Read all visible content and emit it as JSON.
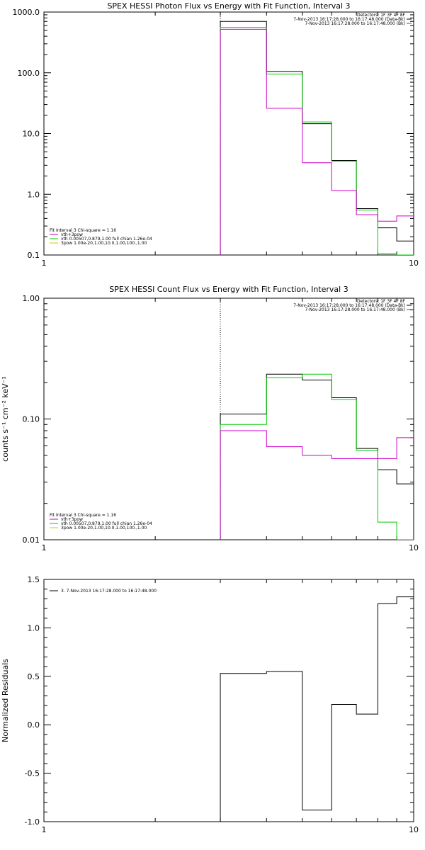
{
  "colors": {
    "black": "#000000",
    "magenta": "#cc00cc",
    "green": "#00cc00",
    "yellow": "#cccc00"
  },
  "chart_data": [
    {
      "type": "line",
      "title": "SPEX HESSI Photon Flux vs Energy with Fit Function, Interval 3",
      "xlabel": "",
      "ylabel": "",
      "xscale": "log",
      "yscale": "log",
      "xlim": [
        1,
        10
      ],
      "ylim": [
        0.1,
        1000
      ],
      "xticks": [
        "1",
        "10"
      ],
      "yticks": [
        "0.1",
        "1.0",
        "10.0",
        "100.0",
        "1000.0"
      ],
      "grid": false,
      "marker_x": 3,
      "info_right": [
        "Detectors: 1F 3F 4F 8F",
        "7-Nov-2013 16:17:28.000 to 16:17:48.000 (Data-Bk)",
        "7-Nov-2013 16:17:28.000 to 16:17:48.000 (Bk)"
      ],
      "legend_placement": "bottom-left",
      "legend_lines": [
        "Fit Interval 3   Chi-square = 1.16",
        "vth+3pow",
        "vth 0.00507,0.879,1.00  full chian 1.26e-04",
        "3pow 1.00e-20,1.00,10.0,1.00,100.,1.00"
      ],
      "bin_edges": [
        3,
        4,
        5,
        6,
        7,
        8,
        9,
        10
      ],
      "series": [
        {
          "color": "#000000",
          "values": [
            700,
            105,
            14.5,
            3.6,
            0.58,
            0.28,
            0.17
          ]
        },
        {
          "color": "#00cc00",
          "values": [
            560,
            95,
            15.5,
            3.5,
            0.55,
            0.105,
            0.08
          ]
        },
        {
          "color": "#cc00cc",
          "values": [
            520,
            26,
            3.3,
            1.15,
            0.46,
            0.36,
            0.44
          ]
        }
      ]
    },
    {
      "type": "line",
      "title": "SPEX HESSI Count Flux vs Energy with Fit Function, Interval 3",
      "xlabel": "",
      "ylabel": "counts s⁻¹ cm⁻² keV⁻¹",
      "xscale": "log",
      "yscale": "log",
      "xlim": [
        1,
        10
      ],
      "ylim": [
        0.01,
        1
      ],
      "xticks": [
        "1",
        "10"
      ],
      "yticks": [
        "0.01",
        "0.10",
        "1.00"
      ],
      "grid": false,
      "marker_x": 3,
      "info_right": [
        "Detectors: 1F 3F 4F 8F",
        "7-Nov-2013 16:17:28.000 to 16:17:48.000 (Data-Bk)",
        "7-Nov-2013 16:17:28.000 to 16:17:48.000 (Bk)"
      ],
      "legend_placement": "bottom-left",
      "legend_lines": [
        "Fit Interval 3   Chi-square = 1.16",
        "vth+3pow",
        "vth 0.00507,0.879,1.00  full chian 1.26e-04",
        "3pow 1.00e-20,1.00,10.0,1.00,100.,1.00"
      ],
      "bin_edges": [
        3,
        4,
        5,
        6,
        7,
        8,
        9,
        10
      ],
      "series": [
        {
          "color": "#000000",
          "values": [
            0.11,
            0.235,
            0.21,
            0.15,
            0.057,
            0.038,
            0.029
          ]
        },
        {
          "color": "#00cc00",
          "values": [
            0.09,
            0.22,
            0.235,
            0.145,
            0.055,
            0.014,
            0.009
          ]
        },
        {
          "color": "#cc00cc",
          "values": [
            0.08,
            0.059,
            0.05,
            0.047,
            0.047,
            0.047,
            0.07
          ]
        }
      ]
    },
    {
      "type": "line",
      "title": "",
      "xlabel": "",
      "ylabel": "Normalized Residuals",
      "xscale": "log",
      "yscale": "linear",
      "xlim": [
        1,
        10
      ],
      "ylim": [
        -1.0,
        1.5
      ],
      "xticks": [
        "1",
        "10"
      ],
      "yticks": [
        "-1.0",
        "-0.5",
        "0.0",
        "0.5",
        "1.0",
        "1.5"
      ],
      "grid": false,
      "legend_placement": "top-left",
      "legend_lines": [
        "3.  7-Nov-2013 16:17:28.000 to 16:17:48.000"
      ],
      "bin_edges": [
        3,
        4,
        5,
        6,
        7,
        8,
        9,
        10
      ],
      "series": [
        {
          "color": "#000000",
          "values": [
            0.53,
            0.55,
            -0.88,
            0.21,
            0.11,
            1.25,
            1.32
          ]
        }
      ]
    }
  ]
}
